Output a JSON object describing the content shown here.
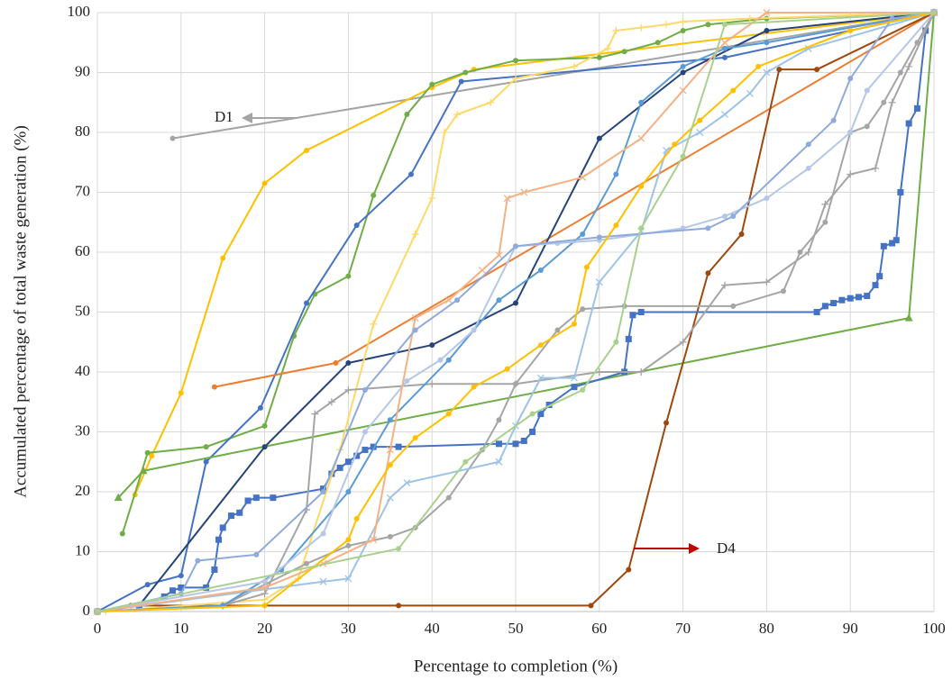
{
  "chart_data": {
    "type": "line",
    "x_label": "Percentage to completion  (%)",
    "y_label": "Accumulated percentage of total waste generation (%)",
    "xlim": [
      0,
      100
    ],
    "ylim": [
      0,
      100
    ],
    "xticks": [
      0,
      10,
      20,
      30,
      40,
      50,
      60,
      70,
      80,
      90,
      100
    ],
    "yticks": [
      0,
      10,
      20,
      30,
      40,
      50,
      60,
      70,
      80,
      90,
      100
    ],
    "grid": true,
    "annotations": [
      "D1",
      "D4"
    ],
    "series": [
      {
        "color": "#a5a5a5",
        "marker": "circle",
        "x": [
          9,
          100
        ],
        "values": [
          79,
          100
        ]
      },
      {
        "color": "#ffc000",
        "marker": "circle",
        "x": [
          4.5,
          6.5,
          10,
          15,
          20,
          25,
          40,
          45,
          100
        ],
        "values": [
          19.5,
          26,
          36.5,
          59,
          71.5,
          77,
          87.5,
          90.5,
          100
        ]
      },
      {
        "color": "#70ad47",
        "marker": "circle",
        "x": [
          3,
          6,
          13,
          20,
          23.5,
          26,
          30,
          33,
          37,
          40,
          44,
          50,
          60,
          63,
          67,
          70,
          73,
          80,
          100
        ],
        "values": [
          13,
          26.5,
          27.5,
          31,
          46,
          53,
          56,
          69.5,
          83,
          88,
          90,
          92,
          92.5,
          93.5,
          95,
          97,
          98,
          99,
          100
        ]
      },
      {
        "color": "#4472c4",
        "marker": "circle",
        "x": [
          0,
          6,
          10,
          13,
          19.5,
          25,
          31,
          37.5,
          43.5,
          75,
          100
        ],
        "values": [
          0,
          4.5,
          6,
          25,
          34,
          51.5,
          64.5,
          73,
          88.5,
          92.5,
          100
        ]
      },
      {
        "color": "#70ad47",
        "marker": "triangle",
        "x": [
          2.5,
          5.5,
          97,
          100
        ],
        "values": [
          19,
          23.5,
          49,
          100
        ]
      },
      {
        "color": "#ed7d31",
        "marker": "circle",
        "x": [
          14,
          28.5,
          100
        ],
        "values": [
          37.5,
          41.5,
          100
        ]
      },
      {
        "color": "#264478",
        "marker": "circle",
        "x": [
          5,
          20,
          30,
          40,
          50,
          60,
          70,
          80,
          100
        ],
        "values": [
          1,
          27.5,
          41.5,
          44.5,
          51.5,
          79,
          90,
          97,
          100
        ]
      },
      {
        "color": "#9e480e",
        "marker": "circle",
        "x": [
          4,
          36,
          59,
          63.5,
          68,
          73,
          77,
          81.5,
          86,
          100
        ],
        "values": [
          1,
          1,
          1,
          7,
          31.5,
          56.5,
          63,
          90.5,
          90.5,
          100
        ]
      },
      {
        "color": "#4472c4",
        "marker": "square",
        "x": [
          0,
          5,
          8,
          9,
          10,
          13,
          14,
          14.5,
          15,
          16,
          17,
          18,
          19,
          21,
          27,
          28,
          29,
          30,
          31,
          32,
          33,
          36,
          48,
          50,
          51,
          52,
          53,
          54,
          57,
          63,
          63.5,
          64,
          65,
          86,
          87,
          88,
          89,
          90,
          91,
          92,
          93,
          93.5,
          94,
          95,
          95.5,
          96,
          97,
          98,
          99,
          100
        ],
        "values": [
          0,
          1,
          2.5,
          3.5,
          4,
          4,
          7,
          12,
          14,
          16,
          16.5,
          18.5,
          19,
          19,
          20.5,
          23,
          24,
          25,
          26,
          27,
          27.5,
          27.5,
          28,
          28,
          28.5,
          30,
          33,
          34.5,
          37.5,
          40,
          45.5,
          49.5,
          50,
          50,
          51,
          51.5,
          52,
          52.3,
          52.5,
          52.7,
          54.5,
          56,
          61,
          61.5,
          62,
          70,
          81.5,
          84,
          97,
          100
        ]
      },
      {
        "color": "#ffd966",
        "marker": "plus",
        "x": [
          1,
          20,
          24,
          29,
          33,
          38,
          40,
          41.5,
          43,
          47,
          50,
          57,
          61,
          62,
          65,
          68,
          70,
          78,
          100
        ],
        "values": [
          0,
          2,
          5.5,
          27,
          48,
          63,
          69,
          80,
          83,
          85,
          89,
          91,
          94,
          97,
          97.5,
          98,
          98.5,
          99,
          100
        ]
      },
      {
        "color": "#a5a5a5",
        "marker": "plus",
        "x": [
          0,
          15,
          20,
          25,
          26,
          28,
          30,
          40,
          50,
          60,
          65,
          70,
          75,
          80,
          85,
          87,
          90,
          93,
          95,
          97,
          100
        ],
        "values": [
          0,
          1,
          3,
          17,
          33,
          35,
          37,
          38,
          38,
          40,
          40,
          45,
          54.5,
          55,
          60,
          68,
          73,
          74,
          85,
          91,
          100
        ]
      },
      {
        "color": "#a5a5a5",
        "marker": "circle",
        "x": [
          0,
          15,
          25,
          30,
          35,
          38,
          42,
          46,
          48,
          50,
          55,
          58,
          63,
          76,
          82,
          84,
          87,
          90,
          92,
          94,
          96,
          98,
          100
        ],
        "values": [
          0,
          1,
          8,
          11,
          12.5,
          14,
          19,
          27,
          32,
          38,
          47,
          50.5,
          51,
          51,
          53.5,
          60,
          65,
          80,
          81,
          85,
          90,
          95,
          100
        ]
      },
      {
        "color": "#9dc3e6",
        "marker": "cross",
        "x": [
          0,
          27,
          30,
          35,
          37,
          48,
          50,
          53,
          57,
          60,
          65,
          68,
          72,
          75,
          78,
          80,
          85,
          100
        ],
        "values": [
          0,
          5,
          5.5,
          19,
          21.5,
          25,
          31,
          39,
          39,
          55,
          63.5,
          77,
          80,
          83,
          86.5,
          90,
          94,
          100
        ]
      },
      {
        "color": "#5b9bd5",
        "marker": "circle",
        "x": [
          0,
          15,
          22,
          30,
          35,
          42,
          48,
          53,
          58,
          62,
          65,
          70,
          75,
          80,
          100
        ],
        "values": [
          0,
          1,
          7,
          20,
          32,
          42,
          52,
          57,
          63,
          73,
          85,
          91,
          94,
          95,
          100
        ]
      },
      {
        "color": "#b4c7e7",
        "marker": "circle",
        "x": [
          0,
          20,
          27,
          32,
          37,
          41,
          45,
          50,
          55,
          60,
          70,
          75,
          80,
          85,
          90,
          92,
          100
        ],
        "values": [
          0,
          5,
          13,
          30,
          38.5,
          42,
          47,
          61,
          61.5,
          62,
          64,
          66,
          69,
          74,
          80,
          87,
          100
        ]
      },
      {
        "color": "#f4b183",
        "marker": "cross",
        "x": [
          0,
          20,
          27,
          33,
          35,
          38,
          42,
          46,
          48,
          49,
          51,
          58,
          65,
          70,
          75,
          80,
          100
        ],
        "values": [
          0,
          4,
          8,
          12,
          27,
          49,
          52,
          57,
          59.5,
          69,
          70,
          72.5,
          79,
          87,
          95,
          100,
          100
        ]
      },
      {
        "color": "#8faadc",
        "marker": "circle",
        "x": [
          0,
          10,
          12,
          19,
          27,
          32,
          38,
          43,
          50,
          60,
          73,
          76,
          85,
          88,
          90,
          95,
          100
        ],
        "values": [
          0,
          3,
          8.5,
          9.5,
          20,
          37,
          47,
          52,
          61,
          62.5,
          64,
          66,
          78,
          82,
          89,
          99,
          100
        ]
      },
      {
        "color": "#ffc000",
        "marker": "circle",
        "x": [
          0,
          20,
          30,
          31,
          35,
          38,
          42,
          45,
          49,
          53,
          57,
          58.5,
          62,
          65,
          69,
          72,
          76,
          79,
          90,
          100
        ],
        "values": [
          0,
          1,
          12,
          15.5,
          24.5,
          29,
          33,
          37.5,
          40.5,
          44.5,
          48,
          57.5,
          64.5,
          71,
          78,
          82,
          87,
          91,
          97,
          100
        ]
      },
      {
        "color": "#a9d18e",
        "marker": "circle",
        "x": [
          0,
          36,
          44,
          52,
          58,
          62,
          65,
          70,
          75,
          100
        ],
        "values": [
          0,
          10.5,
          25,
          33,
          37,
          45,
          64,
          76,
          98,
          100
        ]
      }
    ]
  }
}
